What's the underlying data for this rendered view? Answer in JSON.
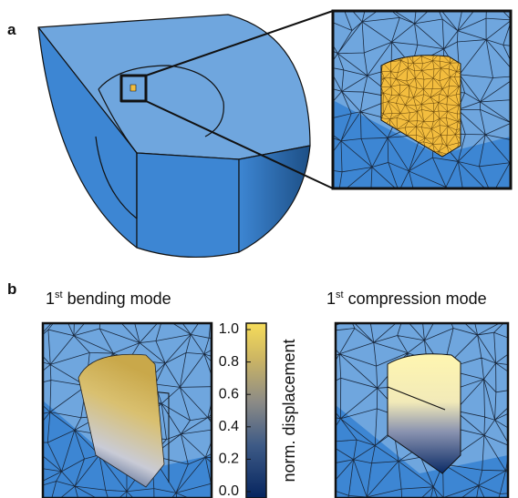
{
  "panel_a": {
    "label": "a"
  },
  "panel_b": {
    "label": "b",
    "left_title": {
      "number": "1",
      "superscript": "st",
      "text": "bending mode"
    },
    "right_title": {
      "number": "1",
      "superscript": "st",
      "text": "compression mode"
    },
    "colorbar": {
      "label": "norm. displacement",
      "lim": [
        0,
        1
      ],
      "ticks": [
        {
          "value": 0,
          "label": "0.0"
        },
        0.2,
        0.4,
        0.6,
        0.8,
        {
          "value": 1,
          "label": "1.0"
        }
      ]
    }
  }
}
